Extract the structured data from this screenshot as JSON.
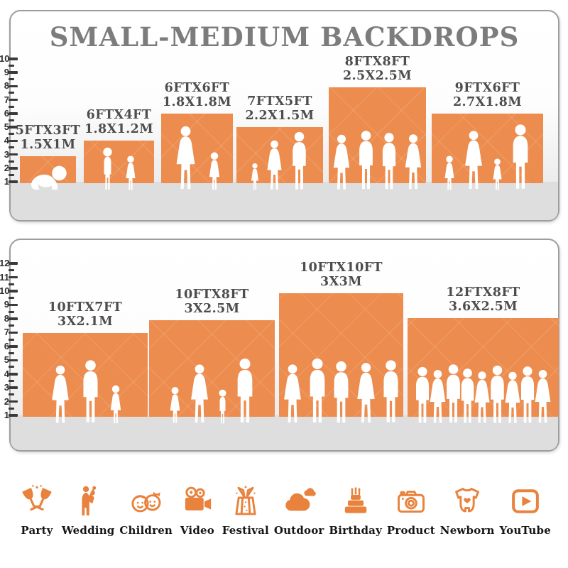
{
  "title": "SMALL-MEDIUM BACKDROPS",
  "panels": [
    {
      "name": "small-medium-top",
      "ruler": [
        "1",
        "2",
        "3",
        "4",
        "5",
        "6",
        "7",
        "8",
        "9",
        "10"
      ],
      "backdrops": [
        {
          "size_ft": "5FTX3FT",
          "size_m": "1.5X1M"
        },
        {
          "size_ft": "6FTX4FT",
          "size_m": "1.8X1.2M"
        },
        {
          "size_ft": "6FTX6FT",
          "size_m": "1.8X1.8M"
        },
        {
          "size_ft": "7FTX5FT",
          "size_m": "2.2X1.5M"
        },
        {
          "size_ft": "8FTX8FT",
          "size_m": "2.5X2.5M"
        },
        {
          "size_ft": "9FTX6FT",
          "size_m": "2.7X1.8M"
        }
      ]
    },
    {
      "name": "small-medium-bottom",
      "ruler": [
        "1",
        "2",
        "3",
        "4",
        "5",
        "6",
        "7",
        "8",
        "9",
        "10",
        "11",
        "12"
      ],
      "backdrops": [
        {
          "size_ft": "10FTX7FT",
          "size_m": "3X2.1M"
        },
        {
          "size_ft": "10FTX8FT",
          "size_m": "3X2.5M"
        },
        {
          "size_ft": "10FTX10FT",
          "size_m": "3X3M"
        },
        {
          "size_ft": "12FTX8FT",
          "size_m": "3.6X2.5M"
        }
      ]
    }
  ],
  "categories": [
    {
      "label": "Party",
      "icon": "party-icon"
    },
    {
      "label": "Wedding",
      "icon": "wedding-icon"
    },
    {
      "label": "Children",
      "icon": "children-icon"
    },
    {
      "label": "Video",
      "icon": "video-icon"
    },
    {
      "label": "Festival",
      "icon": "festival-icon"
    },
    {
      "label": "Outdoor",
      "icon": "outdoor-icon"
    },
    {
      "label": "Birthday",
      "icon": "birthday-icon"
    },
    {
      "label": "Product",
      "icon": "product-icon"
    },
    {
      "label": "Newborn",
      "icon": "newborn-icon"
    },
    {
      "label": "YouTube",
      "icon": "youtube-icon"
    }
  ],
  "colors": {
    "backdrop_orange": "#EC8C4E",
    "icon_orange": "#E8823C",
    "title_gray": "#7C7C7C",
    "label_gray": "#4D4D4D",
    "floor_gray": "#DEDEDE"
  }
}
